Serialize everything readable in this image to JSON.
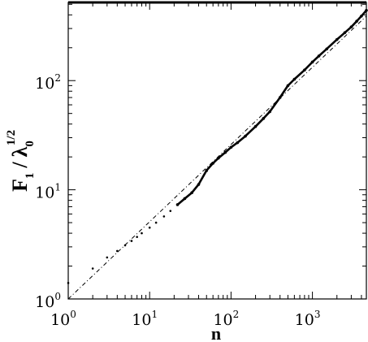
{
  "chart_data": {
    "type": "scatter",
    "title": "",
    "xlabel": "n",
    "ylabel_parts": {
      "main": "F",
      "main_sub": "1",
      "slash": "/",
      "lambda": "λ",
      "lambda_sub": "0",
      "power": "1/2"
    },
    "x_scale": "log",
    "y_scale": "log",
    "xlim": [
      1,
      4600
    ],
    "ylim": [
      1,
      520
    ],
    "grid": false,
    "legend": "none",
    "x_ticks": [
      {
        "value": 1,
        "base": "10",
        "exp": "0"
      },
      {
        "value": 10,
        "base": "10",
        "exp": "1"
      },
      {
        "value": 100,
        "base": "10",
        "exp": "2"
      },
      {
        "value": 1000,
        "base": "10",
        "exp": "3"
      }
    ],
    "y_ticks": [
      {
        "value": 1,
        "base": "10",
        "exp": "0"
      },
      {
        "value": 10,
        "base": "10",
        "exp": "1"
      },
      {
        "value": 100,
        "base": "10",
        "exp": "2"
      }
    ],
    "series": [
      {
        "style": "dots",
        "color": "#000000",
        "x": [
          1,
          2,
          3,
          4,
          5,
          6,
          7,
          8,
          10,
          12,
          15,
          18,
          22,
          27,
          33,
          40,
          50,
          60,
          70,
          85,
          100,
          120,
          150,
          200,
          250,
          300,
          400,
          500,
          600,
          800,
          1000,
          1200,
          1500,
          2000,
          2500,
          3000,
          3500,
          4000,
          4600
        ],
        "y": [
          1.4,
          1.9,
          2.4,
          2.75,
          3.1,
          3.4,
          3.7,
          4.0,
          4.5,
          5.0,
          5.7,
          6.4,
          7.3,
          8.3,
          9.4,
          11.2,
          15.0,
          17.5,
          19.5,
          22.0,
          24.5,
          27.0,
          31.0,
          38.0,
          45.0,
          52.0,
          70.0,
          90.0,
          103.0,
          125.0,
          148.0,
          168.0,
          195.0,
          238.0,
          275.0,
          310.0,
          350.0,
          390.0,
          440.0
        ]
      },
      {
        "style": "dashed-line",
        "color": "#000000",
        "x": [
          1,
          4600
        ],
        "y": [
          1.0,
          390.0
        ]
      }
    ]
  }
}
